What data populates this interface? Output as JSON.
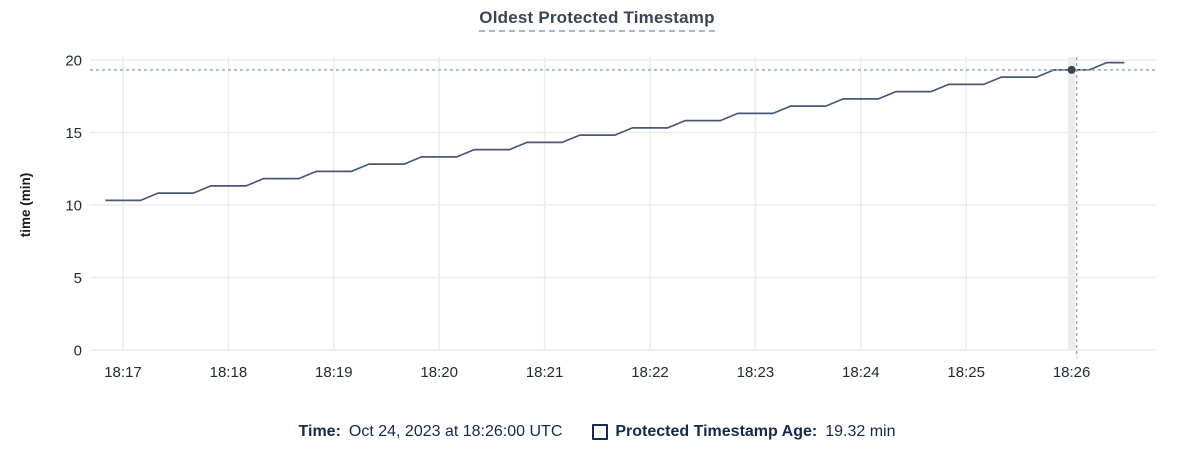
{
  "title": "Oldest Protected Timestamp",
  "legend": {
    "time_label": "Time:",
    "time_value": "Oct 24, 2023 at 18:26:00 UTC",
    "series_label": "Protected Timestamp Age:",
    "series_value": "19.32 min"
  },
  "colors": {
    "line": "#475872",
    "dot": "#394455",
    "grid": "#ececec",
    "hover_band": "#ececec",
    "crosshair": "#98a9b8",
    "tick_text": "#242a35",
    "axis_label_text": "#1a1a1a"
  },
  "chart_data": {
    "type": "line",
    "title": "Oldest Protected Timestamp",
    "xlabel": "",
    "ylabel": "time (min)",
    "ylim": [
      0,
      20
    ],
    "yticks": [
      0,
      5,
      10,
      15,
      20
    ],
    "x_tick_labels": [
      "18:17",
      "18:18",
      "18:19",
      "18:20",
      "18:21",
      "18:22",
      "18:23",
      "18:24",
      "18:25",
      "18:26"
    ],
    "x_tick_spacing_seconds": 60,
    "grid": true,
    "legend_position": "bottom",
    "series": [
      {
        "name": "Protected Timestamp Age",
        "unit": "min",
        "x_seconds_from_first_tick": [
          -10,
          0,
          10,
          20,
          30,
          40,
          50,
          60,
          70,
          80,
          90,
          100,
          110,
          120,
          130,
          140,
          150,
          160,
          170,
          180,
          190,
          200,
          210,
          220,
          230,
          240,
          250,
          260,
          270,
          280,
          290,
          300,
          310,
          320,
          330,
          340,
          350,
          360,
          370,
          380,
          390,
          400,
          410,
          420,
          430,
          440,
          450,
          460,
          470,
          480,
          490,
          500,
          510,
          520,
          530,
          540,
          550,
          560,
          570
        ],
        "values": [
          10.32,
          10.32,
          10.32,
          10.82,
          10.82,
          10.82,
          11.32,
          11.32,
          11.32,
          11.82,
          11.82,
          11.82,
          12.32,
          12.32,
          12.32,
          12.82,
          12.82,
          12.82,
          13.32,
          13.32,
          13.32,
          13.82,
          13.82,
          13.82,
          14.32,
          14.32,
          14.32,
          14.82,
          14.82,
          14.82,
          15.32,
          15.32,
          15.32,
          15.82,
          15.82,
          15.82,
          16.32,
          16.32,
          16.32,
          16.82,
          16.82,
          16.82,
          17.32,
          17.32,
          17.32,
          17.82,
          17.82,
          17.82,
          18.32,
          18.32,
          18.32,
          18.82,
          18.82,
          18.82,
          19.32,
          19.32,
          19.32,
          19.82,
          19.82
        ],
        "color": "#475872"
      }
    ],
    "hover": {
      "x_tick_label": "18:26",
      "x_seconds_from_first_tick": 540,
      "value": 19.32,
      "value_text": "19.32 min",
      "time_text": "Oct 24, 2023 at 18:26:00 UTC"
    }
  }
}
